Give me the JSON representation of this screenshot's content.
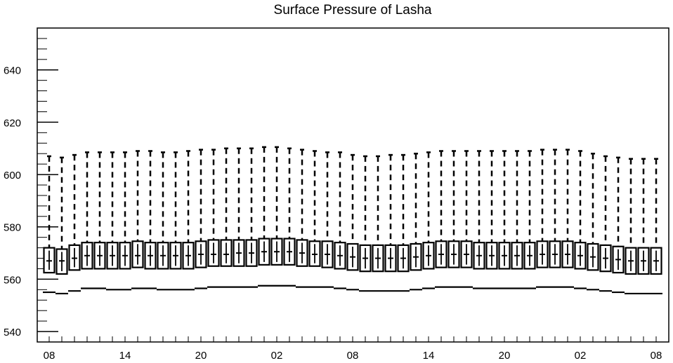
{
  "chart_data": {
    "type": "box",
    "title": "Surface Pressure of Lasha",
    "xlabel": "",
    "ylabel": "",
    "ylim": [
      536,
      656
    ],
    "y_ticks": [
      540,
      560,
      580,
      600,
      620,
      640
    ],
    "x_tick_labels": [
      "08",
      "14",
      "20",
      "02",
      "08",
      "14",
      "20",
      "02",
      "08"
    ],
    "x_tick_positions": [
      0,
      6,
      12,
      18,
      24,
      30,
      36,
      42,
      48
    ],
    "grid": false,
    "legend": "none",
    "boxes": [
      {
        "x": 0,
        "min": 555.0,
        "q1": 562.5,
        "median": 567.0,
        "q3": 572.0,
        "max": 607.0
      },
      {
        "x": 1,
        "min": 554.5,
        "q1": 562.0,
        "median": 567.0,
        "q3": 571.5,
        "max": 606.5
      },
      {
        "x": 2,
        "min": 555.5,
        "q1": 563.5,
        "median": 568.0,
        "q3": 573.0,
        "max": 607.5
      },
      {
        "x": 3,
        "min": 556.5,
        "q1": 564.0,
        "median": 569.0,
        "q3": 574.0,
        "max": 608.5
      },
      {
        "x": 4,
        "min": 556.5,
        "q1": 564.0,
        "median": 569.0,
        "q3": 574.0,
        "max": 608.5
      },
      {
        "x": 5,
        "min": 556.0,
        "q1": 564.0,
        "median": 569.0,
        "q3": 574.0,
        "max": 608.5
      },
      {
        "x": 6,
        "min": 556.0,
        "q1": 564.0,
        "median": 569.0,
        "q3": 574.0,
        "max": 608.5
      },
      {
        "x": 7,
        "min": 556.5,
        "q1": 564.5,
        "median": 569.0,
        "q3": 574.5,
        "max": 609.0
      },
      {
        "x": 8,
        "min": 556.5,
        "q1": 564.0,
        "median": 569.0,
        "q3": 574.0,
        "max": 609.0
      },
      {
        "x": 9,
        "min": 556.0,
        "q1": 564.0,
        "median": 569.0,
        "q3": 574.0,
        "max": 608.5
      },
      {
        "x": 10,
        "min": 556.0,
        "q1": 564.0,
        "median": 569.0,
        "q3": 574.0,
        "max": 608.5
      },
      {
        "x": 11,
        "min": 556.0,
        "q1": 564.0,
        "median": 569.0,
        "q3": 574.0,
        "max": 609.0
      },
      {
        "x": 12,
        "min": 556.5,
        "q1": 564.5,
        "median": 569.5,
        "q3": 574.5,
        "max": 609.5
      },
      {
        "x": 13,
        "min": 557.0,
        "q1": 565.0,
        "median": 569.5,
        "q3": 575.0,
        "max": 609.5
      },
      {
        "x": 14,
        "min": 557.0,
        "q1": 565.0,
        "median": 569.5,
        "q3": 575.0,
        "max": 610.0
      },
      {
        "x": 15,
        "min": 557.0,
        "q1": 565.0,
        "median": 570.0,
        "q3": 575.0,
        "max": 610.0
      },
      {
        "x": 16,
        "min": 557.0,
        "q1": 565.0,
        "median": 570.0,
        "q3": 575.0,
        "max": 610.0
      },
      {
        "x": 17,
        "min": 557.5,
        "q1": 565.5,
        "median": 570.5,
        "q3": 575.5,
        "max": 610.5
      },
      {
        "x": 18,
        "min": 557.5,
        "q1": 565.5,
        "median": 570.5,
        "q3": 575.5,
        "max": 610.5
      },
      {
        "x": 19,
        "min": 557.5,
        "q1": 565.5,
        "median": 570.5,
        "q3": 575.5,
        "max": 610.0
      },
      {
        "x": 20,
        "min": 557.0,
        "q1": 565.0,
        "median": 570.0,
        "q3": 575.0,
        "max": 609.5
      },
      {
        "x": 21,
        "min": 557.0,
        "q1": 565.0,
        "median": 569.5,
        "q3": 574.5,
        "max": 609.0
      },
      {
        "x": 22,
        "min": 557.0,
        "q1": 564.5,
        "median": 569.5,
        "q3": 574.5,
        "max": 608.5
      },
      {
        "x": 23,
        "min": 556.5,
        "q1": 564.0,
        "median": 569.0,
        "q3": 574.0,
        "max": 608.5
      },
      {
        "x": 24,
        "min": 556.0,
        "q1": 563.5,
        "median": 568.5,
        "q3": 573.5,
        "max": 607.5
      },
      {
        "x": 25,
        "min": 555.5,
        "q1": 563.0,
        "median": 568.0,
        "q3": 573.0,
        "max": 607.0
      },
      {
        "x": 26,
        "min": 555.5,
        "q1": 563.0,
        "median": 568.0,
        "q3": 573.0,
        "max": 607.0
      },
      {
        "x": 27,
        "min": 555.5,
        "q1": 563.0,
        "median": 568.0,
        "q3": 573.0,
        "max": 607.5
      },
      {
        "x": 28,
        "min": 555.5,
        "q1": 563.0,
        "median": 568.0,
        "q3": 573.0,
        "max": 607.5
      },
      {
        "x": 29,
        "min": 556.0,
        "q1": 563.5,
        "median": 568.5,
        "q3": 573.5,
        "max": 608.0
      },
      {
        "x": 30,
        "min": 556.5,
        "q1": 564.0,
        "median": 569.0,
        "q3": 574.0,
        "max": 608.5
      },
      {
        "x": 31,
        "min": 557.0,
        "q1": 564.5,
        "median": 569.5,
        "q3": 574.5,
        "max": 609.0
      },
      {
        "x": 32,
        "min": 557.0,
        "q1": 564.5,
        "median": 569.5,
        "q3": 574.5,
        "max": 609.0
      },
      {
        "x": 33,
        "min": 557.0,
        "q1": 564.5,
        "median": 569.5,
        "q3": 574.5,
        "max": 609.0
      },
      {
        "x": 34,
        "min": 556.5,
        "q1": 564.0,
        "median": 569.0,
        "q3": 574.0,
        "max": 609.0
      },
      {
        "x": 35,
        "min": 556.5,
        "q1": 564.0,
        "median": 569.0,
        "q3": 574.0,
        "max": 609.0
      },
      {
        "x": 36,
        "min": 556.5,
        "q1": 564.0,
        "median": 569.0,
        "q3": 574.0,
        "max": 609.0
      },
      {
        "x": 37,
        "min": 556.5,
        "q1": 564.0,
        "median": 569.0,
        "q3": 574.0,
        "max": 609.0
      },
      {
        "x": 38,
        "min": 556.5,
        "q1": 564.0,
        "median": 569.0,
        "q3": 574.0,
        "max": 609.0
      },
      {
        "x": 39,
        "min": 557.0,
        "q1": 564.5,
        "median": 569.5,
        "q3": 574.5,
        "max": 609.5
      },
      {
        "x": 40,
        "min": 557.0,
        "q1": 564.5,
        "median": 569.5,
        "q3": 574.5,
        "max": 609.5
      },
      {
        "x": 41,
        "min": 557.0,
        "q1": 564.5,
        "median": 569.5,
        "q3": 574.5,
        "max": 609.5
      },
      {
        "x": 42,
        "min": 556.5,
        "q1": 564.0,
        "median": 569.0,
        "q3": 574.0,
        "max": 609.0
      },
      {
        "x": 43,
        "min": 556.0,
        "q1": 563.5,
        "median": 568.5,
        "q3": 573.5,
        "max": 608.0
      },
      {
        "x": 44,
        "min": 555.5,
        "q1": 563.0,
        "median": 568.0,
        "q3": 573.0,
        "max": 607.0
      },
      {
        "x": 45,
        "min": 555.0,
        "q1": 562.5,
        "median": 567.5,
        "q3": 572.5,
        "max": 606.5
      },
      {
        "x": 46,
        "min": 554.5,
        "q1": 562.0,
        "median": 567.0,
        "q3": 572.0,
        "max": 606.0
      },
      {
        "x": 47,
        "min": 554.5,
        "q1": 562.0,
        "median": 567.0,
        "q3": 572.0,
        "max": 606.0
      },
      {
        "x": 48,
        "min": 554.5,
        "q1": 562.0,
        "median": 567.0,
        "q3": 572.0,
        "max": 606.0
      }
    ]
  }
}
